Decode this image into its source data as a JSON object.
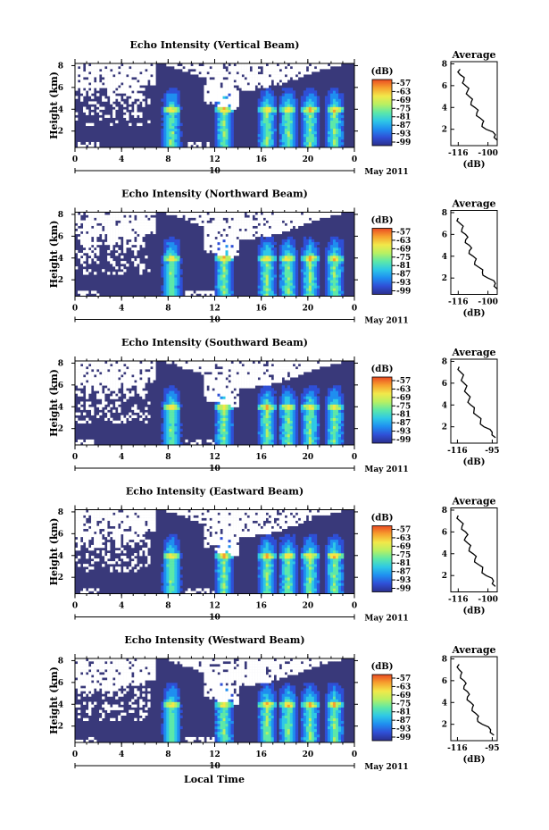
{
  "figure": {
    "xlabel": "Local Time",
    "date_text": "May 2011",
    "day_label": "10",
    "colorbar_unit": "(dB)",
    "colorbar_ticks": [
      "-57",
      "-63",
      "-69",
      "-75",
      "-81",
      "-87",
      "-93",
      "-99"
    ],
    "colormap": [
      "#2b2f8c",
      "#2f4fd6",
      "#1f8ef0",
      "#2ec8e6",
      "#5de8a8",
      "#b8f062",
      "#f2e84a",
      "#f7a12e",
      "#ea4a22"
    ],
    "background_color": "#39397a",
    "avg_title": "Average",
    "avg_xlabel": "(dB)"
  },
  "chart_data": [
    {
      "type": "heatmap",
      "title": "Echo Intensity (Vertical Beam)",
      "ylabel": "Height (km)",
      "x_ticks": [
        "0",
        "4",
        "8",
        "12",
        "16",
        "20",
        "0"
      ],
      "y_ticks": [
        "2",
        "4",
        "6",
        "8"
      ],
      "xlim": [
        0,
        24
      ],
      "ylim": [
        0.5,
        8.2
      ],
      "color_range_dB": [
        -99,
        -57
      ],
      "bright_bands_hours": [
        8.3,
        12.8,
        16.5,
        18.3,
        20.2,
        22.3
      ],
      "melting_layer_km": 4.0,
      "average_profile": {
        "title": "Average",
        "x_ticks": [
          "-116",
          "-100"
        ],
        "xlim": [
          -120,
          -95
        ],
        "y_ticks": [
          "2",
          "4",
          "6",
          "8"
        ],
        "height_km": [
          1.0,
          1.5,
          2.0,
          2.5,
          3.0,
          3.5,
          4.0,
          4.5,
          5.0,
          5.5,
          6.0,
          6.5,
          7.0,
          7.5
        ],
        "value_dB": [
          -95,
          -96,
          -101,
          -103,
          -104,
          -106,
          -107,
          -109,
          -110,
          -111,
          -112,
          -113,
          -115,
          -115
        ]
      }
    },
    {
      "type": "heatmap",
      "title": "Echo Intensity (Northward Beam)",
      "ylabel": "Height (km)",
      "x_ticks": [
        "0",
        "4",
        "8",
        "12",
        "16",
        "20",
        "0"
      ],
      "y_ticks": [
        "2",
        "4",
        "6",
        "8"
      ],
      "xlim": [
        0,
        24
      ],
      "ylim": [
        0.5,
        8.2
      ],
      "color_range_dB": [
        -99,
        -57
      ],
      "bright_bands_hours": [
        8.3,
        12.8,
        16.5,
        18.3,
        20.2,
        22.3
      ],
      "melting_layer_km": 4.0,
      "average_profile": {
        "title": "Average",
        "x_ticks": [
          "-116",
          "-100"
        ],
        "xlim": [
          -120,
          -95
        ],
        "y_ticks": [
          "2",
          "4",
          "6",
          "8"
        ],
        "height_km": [
          1.0,
          1.5,
          2.0,
          2.5,
          3.0,
          3.5,
          4.0,
          4.5,
          5.0,
          5.5,
          6.0,
          6.5,
          7.0,
          7.5
        ],
        "value_dB": [
          -95,
          -96,
          -100,
          -103,
          -105,
          -107,
          -108,
          -110,
          -110,
          -112,
          -112,
          -114,
          -115,
          -116
        ]
      }
    },
    {
      "type": "heatmap",
      "title": "Echo Intensity (Southward Beam)",
      "ylabel": "Height (km)",
      "x_ticks": [
        "0",
        "4",
        "8",
        "12",
        "16",
        "20",
        "0"
      ],
      "y_ticks": [
        "2",
        "4",
        "6",
        "8"
      ],
      "xlim": [
        0,
        24
      ],
      "ylim": [
        0.5,
        8.2
      ],
      "color_range_dB": [
        -99,
        -57
      ],
      "bright_bands_hours": [
        8.3,
        12.8,
        16.5,
        18.3,
        20.2,
        22.3
      ],
      "melting_layer_km": 4.0,
      "average_profile": {
        "title": "Average",
        "x_ticks": [
          "-116",
          "-95"
        ],
        "xlim": [
          -120,
          -92
        ],
        "y_ticks": [
          "2",
          "4",
          "6",
          "8"
        ],
        "height_km": [
          1.0,
          1.5,
          2.0,
          2.5,
          3.0,
          3.5,
          4.0,
          4.5,
          5.0,
          5.5,
          6.0,
          6.5,
          7.0,
          7.5
        ],
        "value_dB": [
          -93,
          -95,
          -100,
          -102,
          -104,
          -106,
          -108,
          -109,
          -110,
          -111,
          -112,
          -113,
          -114,
          -115
        ]
      }
    },
    {
      "type": "heatmap",
      "title": "Echo Intensity (Eastward Beam)",
      "ylabel": "Height (km)",
      "x_ticks": [
        "0",
        "4",
        "8",
        "12",
        "16",
        "20",
        "0"
      ],
      "y_ticks": [
        "2",
        "4",
        "6",
        "8"
      ],
      "xlim": [
        0,
        24
      ],
      "ylim": [
        0.5,
        8.2
      ],
      "color_range_dB": [
        -99,
        -57
      ],
      "bright_bands_hours": [
        8.3,
        12.8,
        16.5,
        18.3,
        20.2,
        22.3
      ],
      "melting_layer_km": 4.0,
      "average_profile": {
        "title": "Average",
        "x_ticks": [
          "-116",
          "-100"
        ],
        "xlim": [
          -120,
          -95
        ],
        "y_ticks": [
          "2",
          "4",
          "6",
          "8"
        ],
        "height_km": [
          1.0,
          1.5,
          2.0,
          2.5,
          3.0,
          3.5,
          4.0,
          4.5,
          5.0,
          5.5,
          6.0,
          6.5,
          7.0,
          7.5
        ],
        "value_dB": [
          -96,
          -97,
          -101,
          -103,
          -105,
          -107,
          -108,
          -110,
          -111,
          -112,
          -112,
          -114,
          -115,
          -116
        ]
      }
    },
    {
      "type": "heatmap",
      "title": "Echo Intensity (Westward Beam)",
      "ylabel": "Height (km)",
      "x_ticks": [
        "0",
        "4",
        "8",
        "12",
        "16",
        "20",
        "0"
      ],
      "y_ticks": [
        "2",
        "4",
        "6",
        "8"
      ],
      "xlim": [
        0,
        24
      ],
      "ylim": [
        0.5,
        8.2
      ],
      "color_range_dB": [
        -99,
        -57
      ],
      "bright_bands_hours": [
        8.3,
        12.8,
        16.5,
        18.3,
        20.2,
        22.3
      ],
      "melting_layer_km": 4.0,
      "average_profile": {
        "title": "Average",
        "x_ticks": [
          "-116",
          "-95"
        ],
        "xlim": [
          -120,
          -92
        ],
        "y_ticks": [
          "2",
          "4",
          "6",
          "8"
        ],
        "height_km": [
          1.0,
          1.5,
          2.0,
          2.5,
          3.0,
          3.5,
          4.0,
          4.5,
          5.0,
          5.5,
          6.0,
          6.5,
          7.0,
          7.5
        ],
        "value_dB": [
          -94,
          -96,
          -101,
          -104,
          -105,
          -107,
          -108,
          -110,
          -110,
          -112,
          -112,
          -114,
          -115,
          -115
        ]
      }
    }
  ]
}
